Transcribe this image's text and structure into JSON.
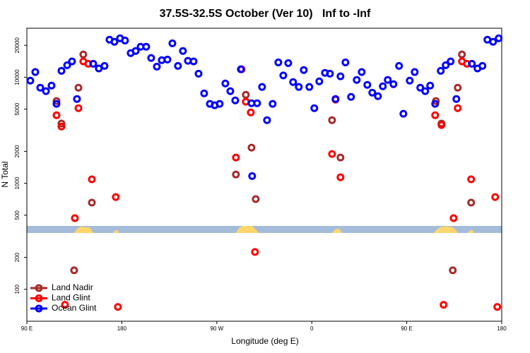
{
  "chart_data": {
    "type": "scatter",
    "title": "37.5S-32.5S October (Ver 10)   Inf to -Inf",
    "x_label": "Longitude (deg E)",
    "y_label": "N Total",
    "log_y": true,
    "legend": "bottom-left",
    "xlim": [
      90,
      540
    ],
    "ylim": [
      50,
      29000
    ],
    "xticks": [
      {
        "value": 90,
        "label": "90 E"
      },
      {
        "value": 180,
        "label": "180"
      },
      {
        "value": 270,
        "label": "90 W"
      },
      {
        "value": 360,
        "label": "0"
      },
      {
        "value": 450,
        "label": "90 E"
      },
      {
        "value": 540,
        "label": "180"
      }
    ],
    "yticks": [
      100,
      200,
      500,
      1000,
      2000,
      5000,
      10000,
      20000
    ],
    "series": [
      {
        "name": "Land Nadir",
        "color": "#a52a2a",
        "x": [
          118.1,
          122.8,
          134.8,
          138.9,
          143.5,
          151.6,
          288.1,
          297.5,
          302.9,
          306.9,
          379.2,
          387.2,
          477.6,
          482.9,
          493.6,
          498.3,
          502.3,
          511.0
        ],
        "values": [
          5970,
          3660,
          151,
          7970,
          16400,
          657,
          1210,
          6830,
          2170,
          710,
          3940,
          1750,
          5970,
          3660,
          151,
          7970,
          16400,
          657
        ]
      },
      {
        "name": "Land Glint",
        "color": "#ff0000",
        "x": [
          118.1,
          122.8,
          126.1,
          135.5,
          138.9,
          143.5,
          148.2,
          151.6,
          174.3,
          176.3,
          288.1,
          293.5,
          297.5,
          302.2,
          306.2,
          379.2,
          382.5,
          387.2,
          476.9,
          482.9,
          484.9,
          494.4,
          498.3,
          502.3,
          507.0,
          511.0,
          533.8,
          535.8
        ],
        "values": [
          4380,
          3430,
          71.4,
          469,
          5110,
          14100,
          13400,
          1090,
          742,
          68.2,
          1750,
          11900,
          5880,
          4660,
          225,
          1890,
          6150,
          1140,
          4380,
          3540,
          71.4,
          469,
          5110,
          14100,
          13400,
          1090,
          742,
          68.2
        ]
      },
      {
        "name": "Ocean Glint",
        "color": "#0000ff",
        "x": [
          93.3,
          98.0,
          102.7,
          108.1,
          113.4,
          118.1,
          122.8,
          128.2,
          132.8,
          137.5,
          152.9,
          158.2,
          163.6,
          168.3,
          173.0,
          178.3,
          183.0,
          188.4,
          193.1,
          197.8,
          203.1,
          207.8,
          213.2,
          217.8,
          223.2,
          227.9,
          233.2,
          237.9,
          242.6,
          248.0,
          252.7,
          258.0,
          263.4,
          268.0,
          272.7,
          278.1,
          282.8,
          287.5,
          292.8,
          302.9,
          303.5,
          308.2,
          312.9,
          317.6,
          322.9,
          328.3,
          333.0,
          337.7,
          342.3,
          347.7,
          352.4,
          357.7,
          362.4,
          367.1,
          372.5,
          377.2,
          382.5,
          387.2,
          391.9,
          397.2,
          402.6,
          407.3,
          412.6,
          417.3,
          422.7,
          427.3,
          432.0,
          437.4,
          442.7,
          446.8,
          452.8,
          457.5,
          462.8,
          467.5,
          472.2,
          476.9,
          482.2,
          486.9,
          491.6,
          497.0,
          511.7,
          517.0,
          521.7,
          526.4,
          531.8,
          537.1
        ],
        "values": [
          9290,
          11200,
          7970,
          7390,
          8350,
          5610,
          11500,
          13000,
          14100,
          6240,
          13400,
          12100,
          12800,
          22600,
          21600,
          23300,
          22200,
          16900,
          17700,
          19400,
          19400,
          15200,
          12600,
          14500,
          14700,
          20900,
          12800,
          17700,
          14300,
          14100,
          10800,
          7050,
          5610,
          5440,
          5610,
          8740,
          7390,
          6050,
          11900,
          5690,
          1170,
          5690,
          8100,
          3940,
          5610,
          13800,
          10400,
          13600,
          9010,
          8100,
          11700,
          8100,
          5110,
          9150,
          11000,
          10800,
          6240,
          10200,
          13800,
          6530,
          9440,
          11200,
          8480,
          7160,
          6630,
          8220,
          9440,
          8600,
          12800,
          4530,
          9290,
          11200,
          7970,
          7390,
          8350,
          5610,
          11500,
          13000,
          14100,
          6240,
          13400,
          12100,
          12800,
          22600,
          21600,
          23300
        ]
      }
    ]
  }
}
